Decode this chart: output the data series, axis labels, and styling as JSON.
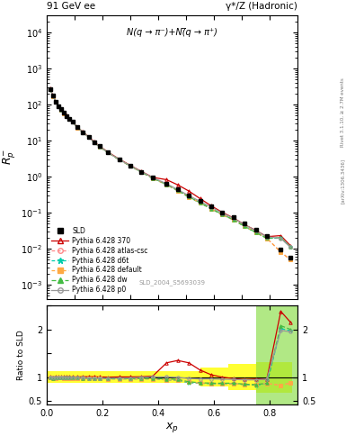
{
  "title_left": "91 GeV ee",
  "title_right": "γ*/Z (Hadronic)",
  "ylabel_main": "$R_{p}^{-}$",
  "annotation": "N(q → π⁻)+N(̅q → π⁺)",
  "watermark": "SLD_2004_S5693039",
  "rivet_label": "Rivet 3.1.10, ≥ 2.7M events",
  "arxiv_label": "[arXiv:1306.3436]",
  "xlabel": "$x_p$",
  "ylabel_ratio": "Ratio to SLD",
  "xp_data": [
    0.012,
    0.022,
    0.032,
    0.042,
    0.052,
    0.062,
    0.072,
    0.082,
    0.092,
    0.11,
    0.13,
    0.15,
    0.17,
    0.19,
    0.22,
    0.26,
    0.3,
    0.34,
    0.38,
    0.43,
    0.47,
    0.51,
    0.55,
    0.59,
    0.63,
    0.67,
    0.71,
    0.75,
    0.79,
    0.84,
    0.875
  ],
  "sld_y": [
    270,
    175,
    120,
    90,
    72,
    58,
    48,
    40,
    33,
    23,
    17,
    12.5,
    9.0,
    6.8,
    4.7,
    3.0,
    2.0,
    1.35,
    0.92,
    0.62,
    0.43,
    0.3,
    0.21,
    0.145,
    0.1,
    0.072,
    0.048,
    0.033,
    0.022,
    0.0095,
    0.0055
  ],
  "sld_yerr_lo": [
    14,
    9,
    6.5,
    5,
    3.8,
    3,
    2.5,
    2,
    1.7,
    1.2,
    0.85,
    0.63,
    0.46,
    0.34,
    0.24,
    0.15,
    0.1,
    0.07,
    0.046,
    0.031,
    0.022,
    0.015,
    0.011,
    0.0073,
    0.005,
    0.0036,
    0.0024,
    0.0017,
    0.0011,
    0.0006,
    0.00036
  ],
  "sld_yerr_hi": [
    14,
    9,
    6.5,
    5,
    3.8,
    3,
    2.5,
    2,
    1.7,
    1.2,
    0.85,
    0.63,
    0.46,
    0.34,
    0.24,
    0.15,
    0.1,
    0.07,
    0.046,
    0.031,
    0.022,
    0.015,
    0.011,
    0.0073,
    0.005,
    0.0036,
    0.0024,
    0.0017,
    0.0011,
    0.0006,
    0.00036
  ],
  "pythia_370_ratio": [
    1.01,
    1.0,
    1.005,
    1.005,
    1.005,
    1.005,
    1.005,
    1.005,
    1.005,
    1.005,
    1.01,
    1.01,
    1.01,
    1.005,
    1.0,
    1.005,
    1.005,
    1.01,
    1.02,
    1.3,
    1.35,
    1.3,
    1.15,
    1.05,
    1.0,
    0.97,
    0.95,
    0.96,
    0.96,
    2.38,
    2.15
  ],
  "pythia_atl_ratio": [
    0.985,
    0.97,
    0.98,
    0.985,
    0.985,
    0.98,
    0.98,
    0.98,
    0.98,
    0.98,
    0.975,
    0.972,
    0.97,
    0.97,
    0.965,
    0.965,
    0.965,
    0.965,
    0.965,
    0.945,
    0.935,
    0.895,
    0.875,
    0.87,
    0.862,
    0.86,
    0.848,
    0.845,
    0.865,
    0.83,
    0.875
  ],
  "pythia_d6t_ratio": [
    0.985,
    0.97,
    0.98,
    0.985,
    0.985,
    0.98,
    0.98,
    0.98,
    0.98,
    0.98,
    0.975,
    0.972,
    0.97,
    0.97,
    0.965,
    0.965,
    0.965,
    0.962,
    0.968,
    0.942,
    0.932,
    0.882,
    0.873,
    0.862,
    0.862,
    0.862,
    0.843,
    0.832,
    0.862,
    2.02,
    1.97
  ],
  "pythia_def_ratio": [
    0.985,
    0.97,
    0.98,
    0.985,
    0.985,
    0.98,
    0.98,
    0.98,
    0.98,
    0.98,
    0.975,
    0.972,
    0.97,
    0.97,
    0.965,
    0.965,
    0.965,
    0.965,
    0.965,
    0.942,
    0.935,
    0.895,
    0.875,
    0.87,
    0.862,
    0.86,
    0.848,
    0.845,
    0.865,
    0.83,
    0.875
  ],
  "pythia_dw_ratio": [
    0.998,
    0.982,
    0.988,
    0.992,
    0.992,
    0.988,
    0.988,
    0.988,
    0.988,
    0.988,
    0.982,
    0.978,
    0.975,
    0.975,
    0.97,
    0.97,
    0.97,
    0.972,
    0.972,
    0.962,
    0.952,
    0.902,
    0.883,
    0.873,
    0.873,
    0.873,
    0.853,
    0.842,
    0.873,
    2.08,
    2.0
  ],
  "pythia_p0_ratio": [
    0.998,
    0.988,
    0.992,
    0.997,
    0.997,
    0.992,
    0.992,
    0.992,
    0.992,
    0.992,
    0.988,
    0.982,
    0.98,
    0.98,
    0.975,
    0.98,
    0.983,
    0.995,
    1.005,
    1.005,
    0.995,
    0.973,
    0.963,
    0.963,
    0.953,
    0.953,
    0.943,
    0.943,
    0.963,
    1.98,
    1.95
  ],
  "color_370": "#cc0000",
  "color_atl": "#ff8888",
  "color_d6t": "#00ccaa",
  "color_def": "#ffaa44",
  "color_dw": "#44bb44",
  "color_p0": "#999999",
  "color_sld": "#000000",
  "ylim_main": [
    0.0004,
    30000.0
  ],
  "xlim": [
    0.0,
    0.9
  ],
  "ylim_ratio": [
    0.42,
    2.5
  ],
  "ratio_yticks": [
    0.5,
    1.0,
    1.5,
    2.0,
    2.5
  ],
  "ratio_yticklabels": [
    "0.5",
    "1",
    "",
    "2",
    ""
  ]
}
